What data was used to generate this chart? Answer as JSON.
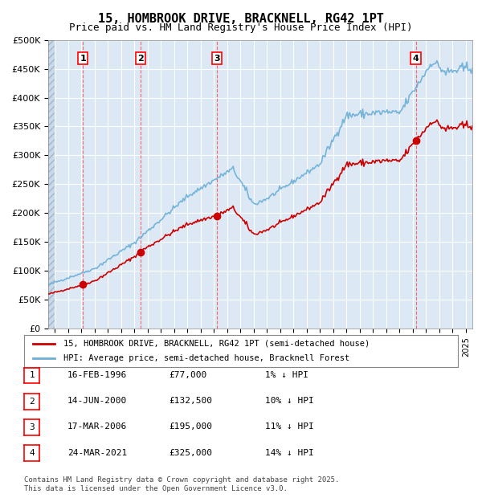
{
  "title": "15, HOMBROOK DRIVE, BRACKNELL, RG42 1PT",
  "subtitle": "Price paid vs. HM Land Registry's House Price Index (HPI)",
  "title_fontsize": 11,
  "subtitle_fontsize": 9,
  "background_color": "#dce9f5",
  "plot_bg_color": "#dce9f5",
  "hatch_color": "#b0c4d8",
  "grid_color": "#ffffff",
  "hpi_line_color": "#6baed6",
  "price_line_color": "#cc0000",
  "dashed_line_color": "#ff4444",
  "ylim": [
    0,
    500000
  ],
  "yticks": [
    0,
    50000,
    100000,
    150000,
    200000,
    250000,
    300000,
    350000,
    400000,
    450000,
    500000
  ],
  "xlabel": "",
  "ylabel": "",
  "legend_label_price": "15, HOMBROOK DRIVE, BRACKNELL, RG42 1PT (semi-detached house)",
  "legend_label_hpi": "HPI: Average price, semi-detached house, Bracknell Forest",
  "sales": [
    {
      "label": "1",
      "date_str": "16-FEB-1996",
      "price": 77000,
      "x_year": 1996.12
    },
    {
      "label": "2",
      "date_str": "14-JUN-2000",
      "price": 132500,
      "x_year": 2000.45
    },
    {
      "label": "3",
      "date_str": "17-MAR-2006",
      "price": 195000,
      "x_year": 2006.21
    },
    {
      "label": "4",
      "date_str": "24-MAR-2021",
      "price": 325000,
      "x_year": 2021.23
    }
  ],
  "sale_details": [
    {
      "num": "1",
      "date": "16-FEB-1996",
      "price": "£77,000",
      "hpi": "1% ↓ HPI"
    },
    {
      "num": "2",
      "date": "14-JUN-2000",
      "price": "£132,500",
      "hpi": "10% ↓ HPI"
    },
    {
      "num": "3",
      "date": "17-MAR-2006",
      "price": "£195,000",
      "hpi": "11% ↓ HPI"
    },
    {
      "num": "4",
      "date": "24-MAR-2021",
      "price": "£325,000",
      "hpi": "14% ↓ HPI"
    }
  ],
  "footer": "Contains HM Land Registry data © Crown copyright and database right 2025.\nThis data is licensed under the Open Government Licence v3.0.",
  "xmin": 1993.5,
  "xmax": 2025.5
}
